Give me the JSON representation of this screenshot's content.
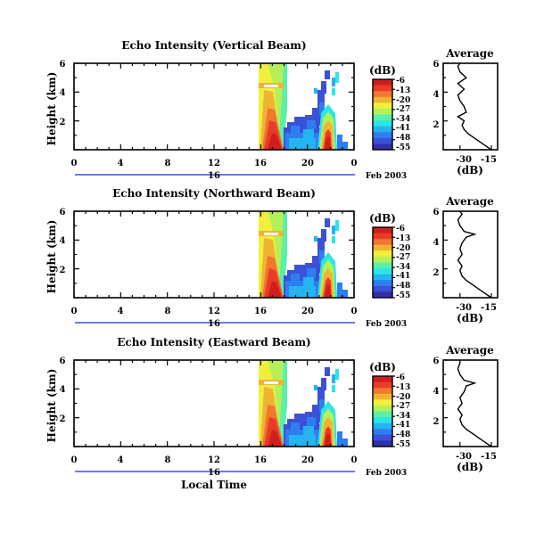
{
  "colors": [
    "#3030a8",
    "#3c50d8",
    "#2f7ef0",
    "#24b4f0",
    "#2ce6e6",
    "#5af0a8",
    "#b4f05a",
    "#f0f03c",
    "#f0b434",
    "#f07830",
    "#e83c28",
    "#d01e1e"
  ],
  "chart_data": [
    {
      "type": "heatmap",
      "title": "Echo Intensity (Vertical Beam)",
      "ylabel": "Height (km)",
      "y_ticks": [
        "2",
        "4",
        "6"
      ],
      "x_ticks": [
        "0",
        "4",
        "8",
        "12",
        "16",
        "20",
        "0"
      ],
      "date_label": "16",
      "date_suffix": "Feb 2003",
      "colorbar_title": "(dB)",
      "colorbar_ticks": [
        "-6",
        "-13",
        "-20",
        "-27",
        "-34",
        "-41",
        "-48",
        "-55"
      ],
      "avg_title": "Average",
      "avg_xticks": [
        "-30",
        "-15"
      ],
      "avg_yticks": [
        "2",
        "4",
        "6"
      ],
      "avg_xlabel": "(dB)",
      "avg_profile": [
        [
          0.0,
          -15
        ],
        [
          0.2,
          -17
        ],
        [
          0.5,
          -20
        ],
        [
          0.8,
          -23
        ],
        [
          1.1,
          -26
        ],
        [
          1.4,
          -28
        ],
        [
          1.7,
          -29
        ],
        [
          2.0,
          -28
        ],
        [
          2.3,
          -31
        ],
        [
          2.6,
          -27
        ],
        [
          3.0,
          -28
        ],
        [
          3.4,
          -30
        ],
        [
          3.8,
          -31
        ],
        [
          4.2,
          -28
        ],
        [
          4.6,
          -31
        ],
        [
          5.0,
          -27
        ],
        [
          5.4,
          -30
        ],
        [
          5.8,
          -31
        ],
        [
          6.0,
          -30
        ]
      ]
    },
    {
      "type": "heatmap",
      "title": "Echo Intensity (Northward Beam)",
      "ylabel": "Height (km)",
      "y_ticks": [
        "2",
        "4",
        "6"
      ],
      "x_ticks": [
        "0",
        "4",
        "8",
        "12",
        "16",
        "20",
        "0"
      ],
      "date_label": "16",
      "date_suffix": "Feb 2003",
      "colorbar_title": "(dB)",
      "colorbar_ticks": [
        "-6",
        "-13",
        "-20",
        "-27",
        "-34",
        "-41",
        "-48",
        "-55"
      ],
      "avg_title": "Average",
      "avg_xticks": [
        "-30",
        "-15"
      ],
      "avg_yticks": [
        "2",
        "4",
        "6"
      ],
      "avg_xlabel": "(dB)",
      "avg_profile": [
        [
          0.0,
          -15
        ],
        [
          0.3,
          -18
        ],
        [
          0.6,
          -21
        ],
        [
          0.9,
          -24
        ],
        [
          1.2,
          -27
        ],
        [
          1.5,
          -29
        ],
        [
          1.9,
          -30
        ],
        [
          2.2,
          -29
        ],
        [
          2.6,
          -31
        ],
        [
          3.0,
          -29
        ],
        [
          3.4,
          -30
        ],
        [
          3.8,
          -29
        ],
        [
          4.2,
          -27
        ],
        [
          4.4,
          -23
        ],
        [
          4.6,
          -28
        ],
        [
          5.0,
          -30
        ],
        [
          5.4,
          -31
        ],
        [
          5.8,
          -29
        ],
        [
          6.0,
          -30
        ]
      ]
    },
    {
      "type": "heatmap",
      "title": "Echo Intensity (Eastward Beam)",
      "ylabel": "Height (km)",
      "y_ticks": [
        "2",
        "4",
        "6"
      ],
      "x_ticks": [
        "0",
        "4",
        "8",
        "12",
        "16",
        "20",
        "0"
      ],
      "date_label": "16",
      "date_suffix": "Feb 2003",
      "colorbar_title": "(dB)",
      "colorbar_ticks": [
        "-6",
        "-13",
        "-20",
        "-27",
        "-34",
        "-41",
        "-48",
        "-55"
      ],
      "avg_title": "Average",
      "avg_xticks": [
        "-30",
        "-15"
      ],
      "avg_yticks": [
        "2",
        "4",
        "6"
      ],
      "avg_xlabel": "(dB)",
      "avg_profile": [
        [
          0.0,
          -15
        ],
        [
          0.3,
          -18
        ],
        [
          0.6,
          -21
        ],
        [
          0.9,
          -24
        ],
        [
          1.2,
          -27
        ],
        [
          1.5,
          -29
        ],
        [
          1.9,
          -30
        ],
        [
          2.2,
          -29
        ],
        [
          2.6,
          -31
        ],
        [
          3.0,
          -29
        ],
        [
          3.4,
          -30
        ],
        [
          3.8,
          -28
        ],
        [
          4.2,
          -27
        ],
        [
          4.4,
          -23
        ],
        [
          4.6,
          -28
        ],
        [
          5.0,
          -30
        ],
        [
          5.4,
          -31
        ],
        [
          5.8,
          -30
        ],
        [
          6.0,
          -30
        ]
      ]
    }
  ],
  "xlabel": "Local Time"
}
